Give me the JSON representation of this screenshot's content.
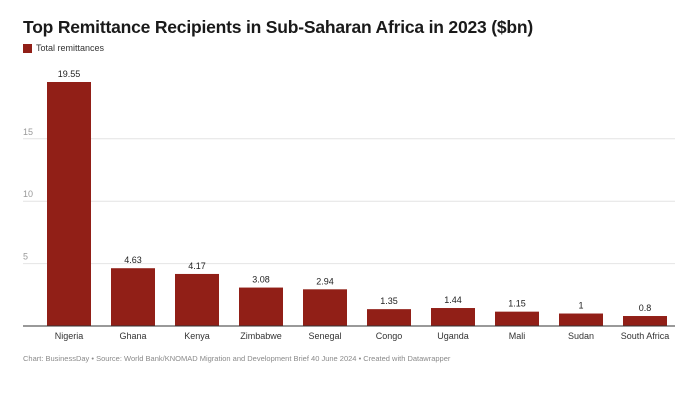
{
  "title": "Top Remittance Recipients in Sub-Saharan Africa in 2023 ($bn)",
  "footer": "Chart: BusinessDay • Source: World Bank/KNOMAD Migration and Development Brief 40 June 2024 • Created with Datawrapper",
  "colors": {
    "bar": "#911f17",
    "grid": "#e4e4e4",
    "axis": "#333333",
    "tick": "#999999"
  },
  "chart_data": {
    "type": "bar",
    "title": "Top Remittance Recipients in Sub-Saharan Africa in 2023 ($bn)",
    "categories": [
      "Nigeria",
      "Ghana",
      "Kenya",
      "Zimbabwe",
      "Senegal",
      "Congo",
      "Uganda",
      "Mali",
      "Sudan",
      "South Africa"
    ],
    "series": [
      {
        "name": "Total remittances",
        "values": [
          19.55,
          4.63,
          4.17,
          3.08,
          2.94,
          1.35,
          1.44,
          1.15,
          1,
          0.8
        ],
        "labels": [
          "19.55",
          "4.63",
          "4.17",
          "3.08",
          "2.94",
          "1.35",
          "1.44",
          "1.15",
          "1",
          "0.8"
        ]
      }
    ],
    "yticks": [
      5,
      10,
      15
    ],
    "ylim": [
      0,
      19.55
    ],
    "xlabel": "",
    "ylabel": "",
    "grid": true,
    "legend": "top-left"
  }
}
